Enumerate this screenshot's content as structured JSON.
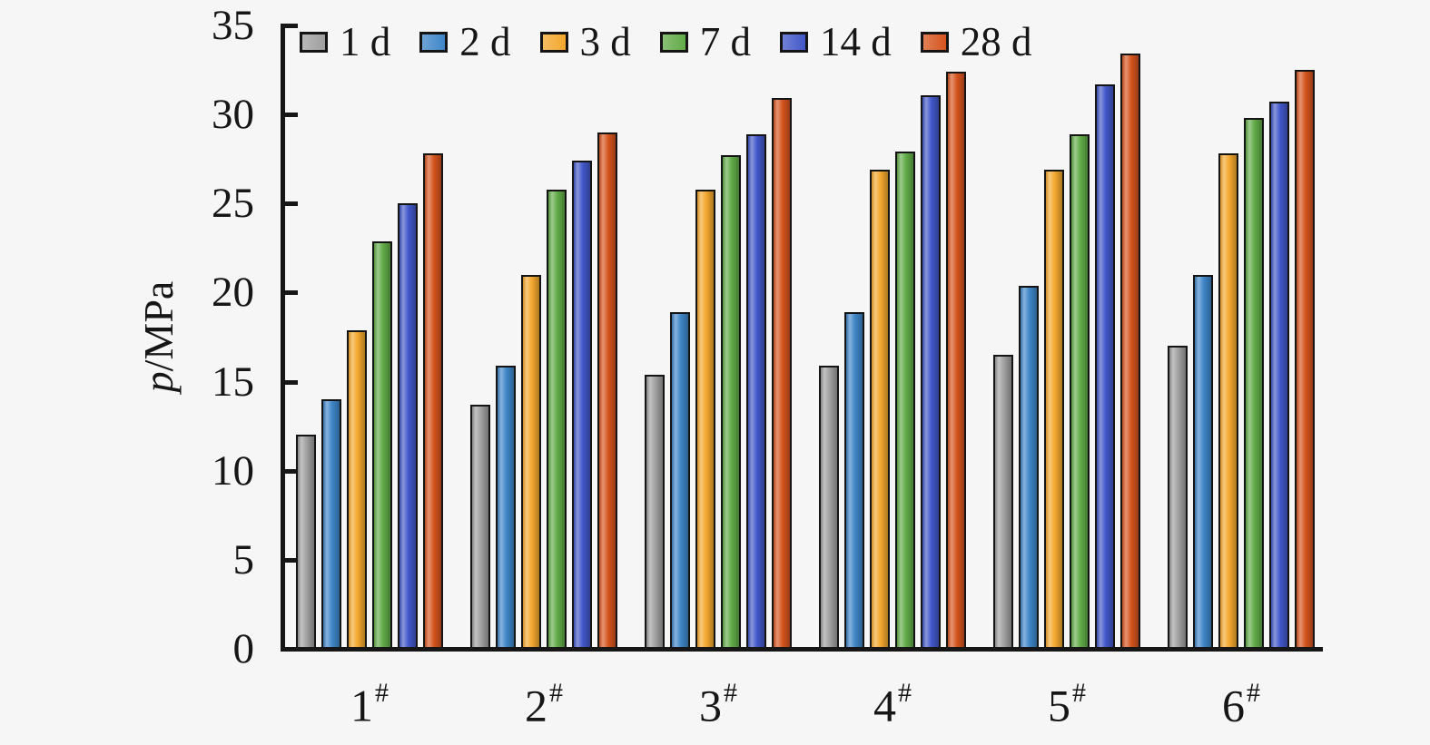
{
  "chart_data": {
    "type": "bar",
    "title": "",
    "xlabel": "",
    "ylabel": "p/MPa",
    "ylabel_italic": "p",
    "ylabel_rest": "/MPa",
    "ylim": [
      0,
      35
    ],
    "yticks": [
      0,
      5,
      10,
      15,
      20,
      25,
      30,
      35
    ],
    "grid": false,
    "legend_position": "top-left horizontal inside plot",
    "categories": [
      "1",
      "2",
      "3",
      "4",
      "5",
      "6"
    ],
    "category_marker": "#",
    "series": [
      {
        "name": "1 d",
        "color": "#9f9f9f",
        "values": [
          12.0,
          13.7,
          15.4,
          15.9,
          16.5,
          17.0
        ]
      },
      {
        "name": "2 d",
        "color": "#3e86c8",
        "values": [
          14.0,
          15.9,
          18.9,
          18.9,
          20.4,
          21.0
        ]
      },
      {
        "name": "3 d",
        "color": "#f3a72c",
        "values": [
          17.9,
          21.0,
          25.8,
          26.9,
          26.9,
          27.8
        ]
      },
      {
        "name": "7 d",
        "color": "#61ab47",
        "values": [
          22.9,
          25.8,
          27.7,
          27.9,
          28.9,
          29.8
        ]
      },
      {
        "name": "14 d",
        "color": "#4157c8",
        "values": [
          25.0,
          27.4,
          28.9,
          31.1,
          31.7,
          30.7
        ]
      },
      {
        "name": "28 d",
        "color": "#d6541e",
        "values": [
          27.8,
          29.0,
          30.9,
          32.4,
          33.4,
          32.5
        ]
      }
    ]
  },
  "colors": {
    "background": "#f6f6f6",
    "axis": "#161616",
    "text": "#161616"
  }
}
